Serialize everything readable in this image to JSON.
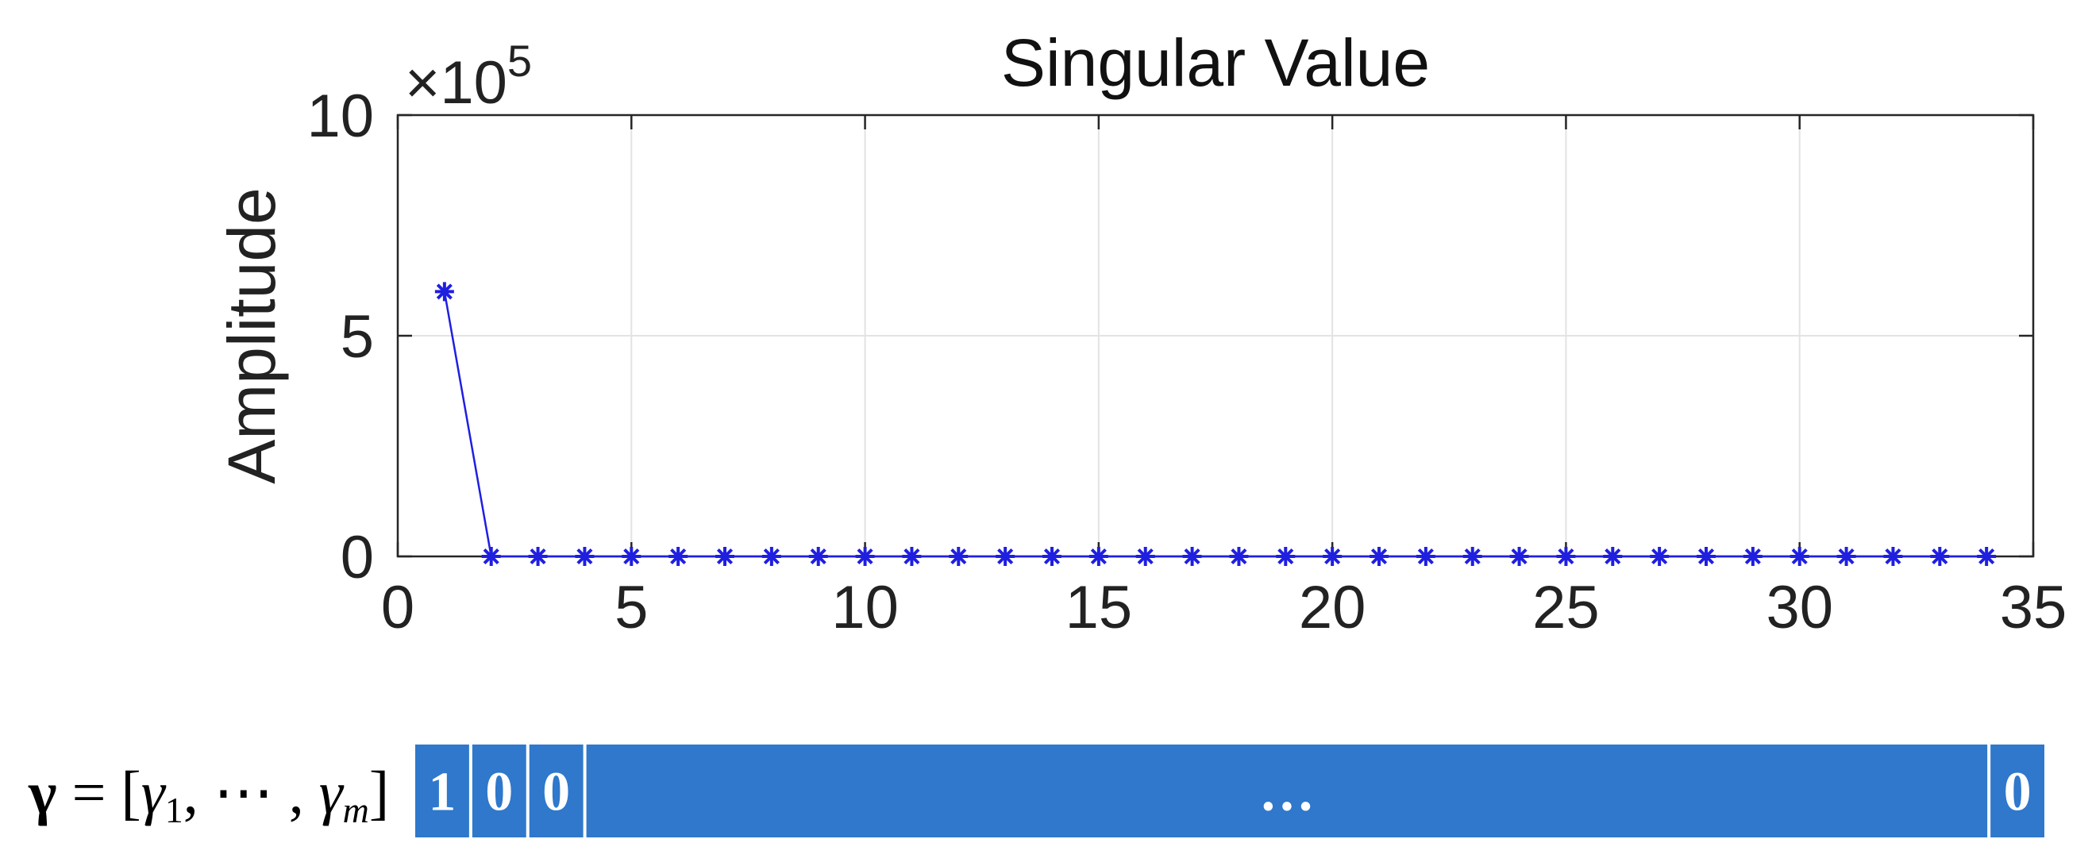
{
  "chart_data": {
    "type": "line",
    "title": "Singular Value",
    "xlabel": "",
    "ylabel": "Amplitude",
    "y_exponent_label": "×10",
    "y_exponent_power": "5",
    "xlim": [
      0,
      35
    ],
    "ylim": [
      0,
      10
    ],
    "x_ticks": [
      0,
      5,
      10,
      15,
      20,
      25,
      30,
      35
    ],
    "y_ticks": [
      0,
      5,
      10
    ],
    "x_tick_labels": [
      "0",
      "5",
      "10",
      "15",
      "20",
      "25",
      "30",
      "35"
    ],
    "y_tick_labels": [
      "0",
      "5",
      "10"
    ],
    "grid": true,
    "marker": "asterisk",
    "line_color": "#1f1fe0",
    "series": [
      {
        "x": [
          1,
          2,
          3,
          4,
          5,
          6,
          7,
          8,
          9,
          10,
          11,
          12,
          13,
          14,
          15,
          16,
          17,
          18,
          19,
          20,
          21,
          22,
          23,
          24,
          25,
          26,
          27,
          28,
          29,
          30,
          31,
          32,
          33,
          34
        ],
        "values": [
          6.0,
          0,
          0,
          0,
          0,
          0,
          0,
          0,
          0,
          0,
          0,
          0,
          0,
          0,
          0,
          0,
          0,
          0,
          0,
          0,
          0,
          0,
          0,
          0,
          0,
          0,
          0,
          0,
          0,
          0,
          0,
          0,
          0,
          0
        ]
      }
    ]
  },
  "gamma_vector": {
    "bold_symbol": "γ",
    "equals": " = [",
    "g1": "γ",
    "s1": "1",
    "mid": ", ⋯ , ",
    "gm": "γ",
    "sm": "m",
    "close": "]",
    "cells": [
      {
        "label": "1",
        "span": 1
      },
      {
        "label": "0",
        "span": 1
      },
      {
        "label": "0",
        "span": 1
      },
      {
        "label": "…",
        "span": 26
      },
      {
        "label": "0",
        "span": 1
      }
    ],
    "cell_color": "#2f78cc"
  }
}
